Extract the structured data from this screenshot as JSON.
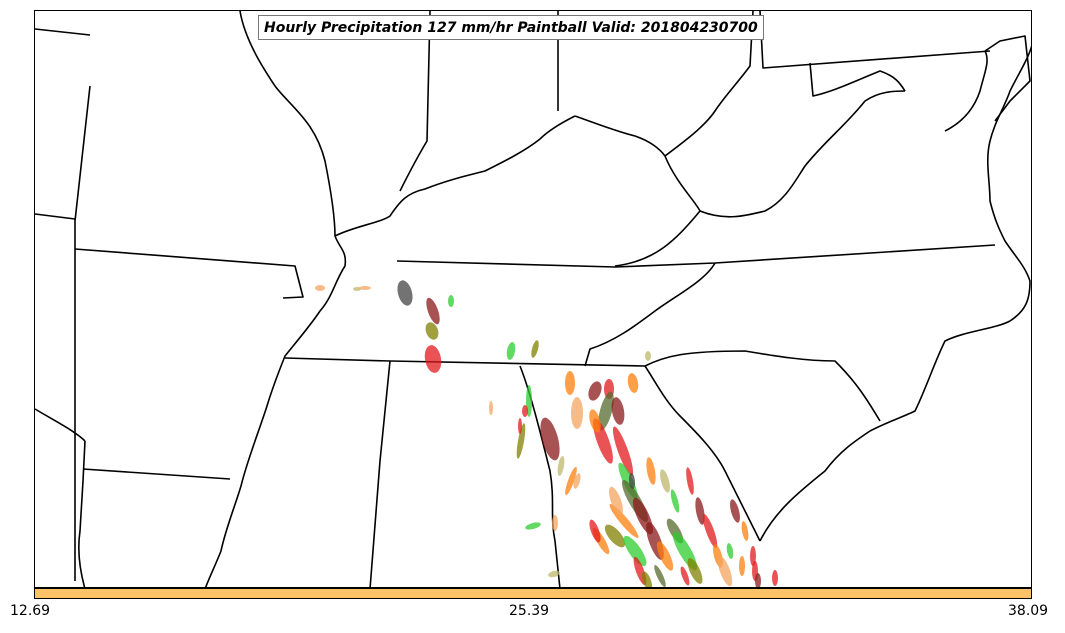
{
  "map": {
    "title": "Hourly Precipitation 127 mm/hr Paintball Valid: 201804230700",
    "basemap": "US state boundaries and coastlines (southeastern United States)",
    "paintball_colors": [
      "#e31a1c",
      "#2ecc2e",
      "#ff7f0e",
      "#556b2f",
      "#8b1a1a",
      "#808000",
      "#bdb76b",
      "#f4a460",
      "#444444"
    ]
  },
  "colorbar": {
    "color": "#ffc266",
    "ticks": [
      "12.69",
      "25.39",
      "38.09"
    ]
  }
}
